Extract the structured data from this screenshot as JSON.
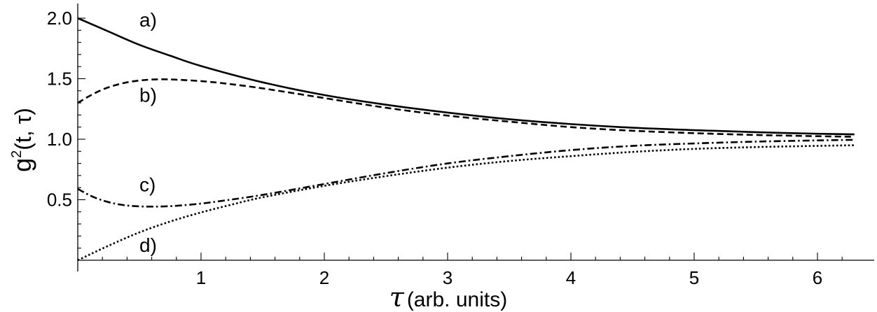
{
  "chart_data": {
    "type": "line",
    "title": "",
    "xlabel": {
      "symbol": "τ",
      "text": "(arb. units)"
    },
    "ylabel": {
      "base": "g",
      "sup": "2",
      "rest": "(t, τ)"
    },
    "xlim": [
      0,
      6.3
    ],
    "ylim": [
      0,
      2.05
    ],
    "x_ticks": [
      1,
      2,
      3,
      4,
      5,
      6
    ],
    "x_tick_labels": [
      "1",
      "2",
      "3",
      "4",
      "5",
      "6"
    ],
    "y_ticks": [
      0.5,
      1.0,
      1.5,
      2.0
    ],
    "y_tick_labels": [
      "0.5",
      "1.0",
      "1.5",
      "2.0"
    ],
    "grid": false,
    "legend": "none",
    "series": [
      {
        "name": "a)",
        "dash": "solid",
        "label_at": [
          0.5,
          1.93
        ],
        "x": [
          0,
          0.25,
          0.5,
          0.75,
          1.0,
          1.5,
          2.0,
          2.5,
          3.0,
          3.5,
          4.0,
          4.5,
          5.0,
          5.5,
          6.0,
          6.3
        ],
        "y": [
          2.0,
          1.89,
          1.78,
          1.69,
          1.605,
          1.47,
          1.365,
          1.285,
          1.22,
          1.165,
          1.125,
          1.095,
          1.075,
          1.058,
          1.045,
          1.04
        ]
      },
      {
        "name": "b)",
        "dash": "dashed",
        "label_at": [
          0.5,
          1.31
        ],
        "x": [
          0,
          0.1,
          0.2,
          0.3,
          0.4,
          0.5,
          0.6,
          0.7,
          0.8,
          1.0,
          1.2,
          1.5,
          2.0,
          2.5,
          3.0,
          3.5,
          4.0,
          4.5,
          5.0,
          5.5,
          6.0,
          6.3
        ],
        "y": [
          1.3,
          1.36,
          1.41,
          1.445,
          1.47,
          1.485,
          1.493,
          1.495,
          1.492,
          1.48,
          1.46,
          1.42,
          1.34,
          1.26,
          1.195,
          1.145,
          1.1,
          1.07,
          1.05,
          1.035,
          1.025,
          1.02
        ]
      },
      {
        "name": "c)",
        "dash": "dashdot",
        "label_at": [
          0.5,
          0.57
        ],
        "x": [
          0,
          0.1,
          0.2,
          0.3,
          0.4,
          0.5,
          0.6,
          0.7,
          0.8,
          1.0,
          1.2,
          1.5,
          2.0,
          2.5,
          3.0,
          3.5,
          4.0,
          4.5,
          5.0,
          5.5,
          6.0,
          6.3
        ],
        "y": [
          0.59,
          0.535,
          0.495,
          0.468,
          0.452,
          0.445,
          0.443,
          0.445,
          0.45,
          0.468,
          0.495,
          0.54,
          0.63,
          0.72,
          0.8,
          0.86,
          0.91,
          0.945,
          0.965,
          0.98,
          0.99,
          0.995
        ]
      },
      {
        "name": "d)",
        "dash": "dotted",
        "label_at": [
          0.5,
          0.07
        ],
        "x": [
          0,
          0.25,
          0.5,
          0.75,
          1.0,
          1.25,
          1.5,
          2.0,
          2.5,
          3.0,
          3.5,
          4.0,
          4.5,
          5.0,
          5.5,
          6.0,
          6.3
        ],
        "y": [
          0.0,
          0.12,
          0.23,
          0.32,
          0.395,
          0.46,
          0.52,
          0.615,
          0.695,
          0.765,
          0.82,
          0.86,
          0.895,
          0.92,
          0.935,
          0.945,
          0.95
        ]
      }
    ]
  }
}
